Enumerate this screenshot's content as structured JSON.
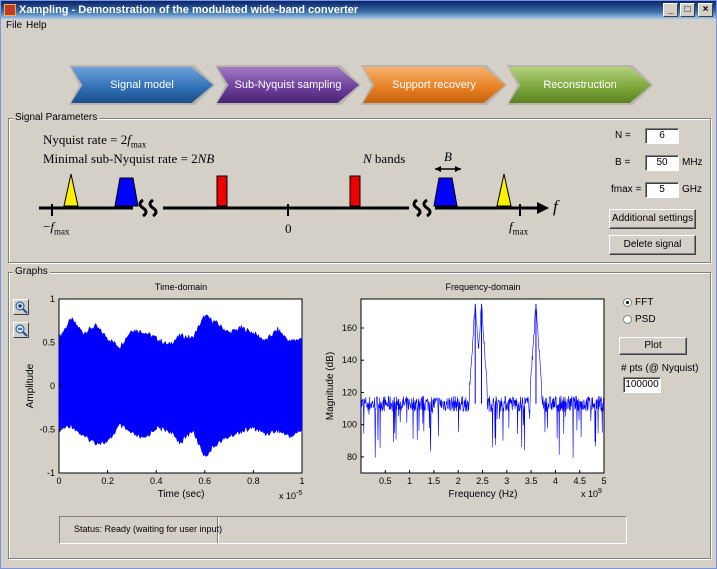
{
  "window": {
    "title": "Xampling - Demonstration of the modulated wide-band converter"
  },
  "menu": [
    "File",
    "Help"
  ],
  "window_buttons": {
    "minimize": "_",
    "maximize": "□",
    "close": "×"
  },
  "steps": [
    {
      "label": "Signal model",
      "color": "#2f6db3"
    },
    {
      "label": "Sub-Nyquist sampling",
      "color": "#6a3d9a"
    },
    {
      "label": "Support recovery",
      "color": "#e67e22"
    },
    {
      "label": "Reconstruction",
      "color": "#79a43a"
    }
  ],
  "signal_params": {
    "group_label": "Signal Parameters",
    "nyquist_prefix": "Nyquist rate = 2",
    "f_letter": "f",
    "max_sub": "max",
    "minimal_text": "Minimal sub-Nyquist rate = 2",
    "NB": "NB",
    "n_bands_N": "N",
    "n_bands_text": "bands",
    "B": "B",
    "minus": "−",
    "zero": "0",
    "N_label": "N =",
    "N_value": "6",
    "B_label": "B =",
    "B_value": "50",
    "B_unit": "MHz",
    "fmax_label": "fmax =",
    "fmax_value": "5",
    "fmax_unit": "GHz",
    "additional_settings": "Additional settings",
    "delete_signal": "Delete signal"
  },
  "graphs": {
    "group_label": "Graphs",
    "fft_label": "FFT",
    "psd_label": "PSD",
    "selected": "FFT",
    "plot_button": "Plot",
    "pts_label": "# pts (@ Nyquist)",
    "pts_value": "100000",
    "zoom_in_icon": "zoom-in-icon",
    "zoom_out_icon": "zoom-out-icon"
  },
  "status": {
    "text": "Status: Ready (waiting for user input)"
  },
  "chart_data": [
    {
      "type": "area",
      "title": "Time-domain",
      "xlabel": "Time (sec)",
      "ylabel": "Amplitude",
      "xlim": [
        0,
        1
      ],
      "ylim": [
        -1,
        1
      ],
      "x_exponent": "x 10",
      "x_exponent_power": "-5",
      "xticks": [
        "0",
        "0.2",
        "0.4",
        "0.6",
        "0.8",
        "1"
      ],
      "yticks": [
        "-1",
        "-0.5",
        "0",
        "0.5",
        "1"
      ],
      "color": "#0000ff",
      "x": [
        0,
        0.05,
        0.1,
        0.15,
        0.2,
        0.25,
        0.3,
        0.35,
        0.4,
        0.45,
        0.5,
        0.55,
        0.6,
        0.65,
        0.7,
        0.75,
        0.8,
        0.85,
        0.9,
        0.95,
        1
      ],
      "upper_envelope": [
        0.52,
        0.74,
        0.58,
        0.66,
        0.52,
        0.42,
        0.62,
        0.59,
        0.52,
        0.44,
        0.55,
        0.52,
        0.78,
        0.69,
        0.58,
        0.64,
        0.58,
        0.49,
        0.62,
        0.48,
        0.52
      ],
      "lower_envelope": [
        -0.48,
        -0.42,
        -0.55,
        -0.62,
        -0.62,
        -0.42,
        -0.52,
        -0.58,
        -0.45,
        -0.48,
        -0.62,
        -0.48,
        -0.78,
        -0.63,
        -0.55,
        -0.49,
        -0.45,
        -0.52,
        -0.48,
        -0.55,
        -0.48
      ]
    },
    {
      "type": "line",
      "title": "Frequency-domain",
      "xlabel": "Frequency (Hz)",
      "ylabel": "Magnitude (dB)",
      "xlim": [
        0,
        5
      ],
      "ylim": [
        70,
        178
      ],
      "x_exponent": "x 10",
      "x_exponent_power": "9",
      "xticks": [
        "0.5",
        "1",
        "1.5",
        "2",
        "2.5",
        "3",
        "3.5",
        "4",
        "4.5",
        "5"
      ],
      "yticks": [
        "80",
        "100",
        "120",
        "140",
        "160"
      ],
      "color": "#0000ff",
      "noise_floor_db": 113,
      "noise_spread_db": 5,
      "peaks": [
        {
          "x": 2.35,
          "db": 175
        },
        {
          "x": 2.48,
          "db": 175
        },
        {
          "x": 3.6,
          "db": 175
        }
      ]
    }
  ]
}
